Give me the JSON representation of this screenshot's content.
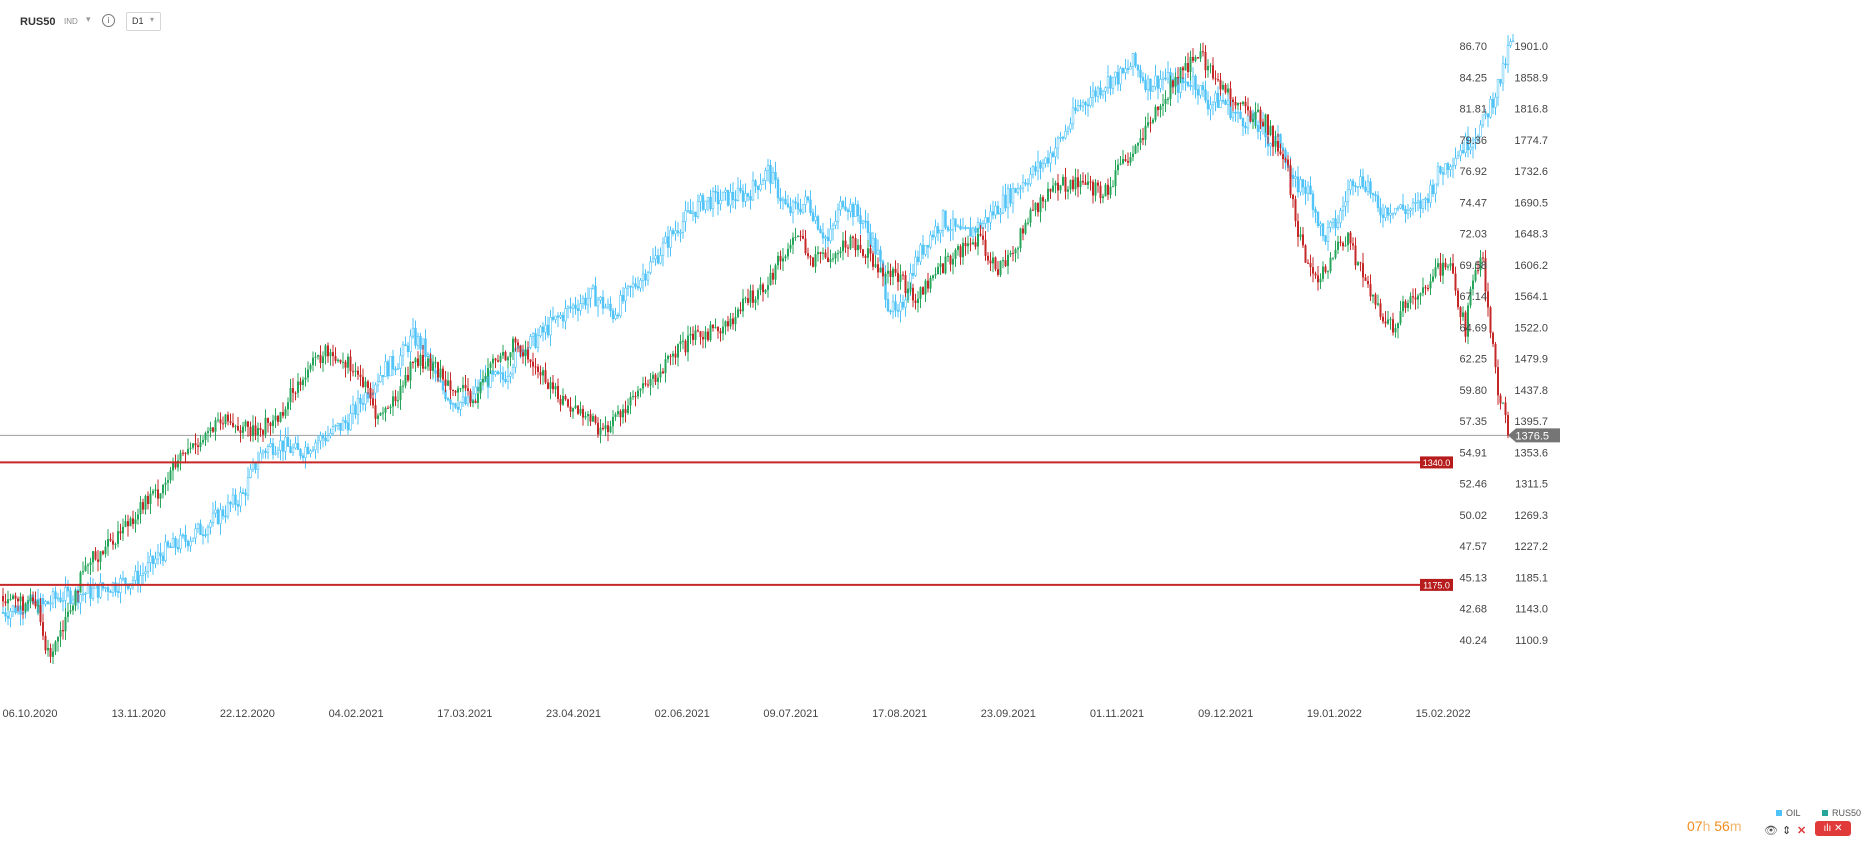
{
  "toolbar": {
    "symbol": "RUS50",
    "type": "IND",
    "timeframe": "D1",
    "caret_icon": "caret-down-icon",
    "info_icon": "info-icon"
  },
  "countdown": {
    "hours": "07",
    "h_label": "h",
    "minutes": "56",
    "m_label": "m"
  },
  "legend": [
    {
      "label": "OIL",
      "color": "#4fc3f7"
    },
    {
      "label": "RUS50",
      "color": "#26a69a"
    }
  ],
  "colors": {
    "oil": "#4fc3f7",
    "up": "#26a65b",
    "down": "#c62828",
    "hline": "#c62828",
    "price_line": "#9e9e9e",
    "price_tag": "#757575"
  },
  "chart_data": {
    "type": "candlestick",
    "x_ticks": [
      "06.10.2020",
      "13.11.2020",
      "22.12.2020",
      "04.02.2021",
      "17.03.2021",
      "23.04.2021",
      "02.06.2021",
      "09.07.2021",
      "17.08.2021",
      "23.09.2021",
      "01.11.2021",
      "09.12.2021",
      "19.01.2022",
      "15.02.2022"
    ],
    "y_left_ticks": [
      "86.70",
      "84.25",
      "81.81",
      "79.36",
      "76.92",
      "74.47",
      "72.03",
      "69.58",
      "67.14",
      "64.69",
      "62.25",
      "59.80",
      "57.35",
      "54.91",
      "52.46",
      "50.02",
      "47.57",
      "45.13",
      "42.68",
      "40.24"
    ],
    "y_right_ticks": [
      "1901.0",
      "1858.9",
      "1816.8",
      "1774.7",
      "1732.6",
      "1690.5",
      "1648.3",
      "1606.2",
      "1564.1",
      "1522.0",
      "1479.9",
      "1437.8",
      "1395.7",
      "1353.6",
      "1311.5",
      "1269.3",
      "1227.2",
      "1185.1",
      "1143.0",
      "1100.9"
    ],
    "y_right_range": [
      1100.9,
      1901.0
    ],
    "y_left_range": [
      40.24,
      86.7
    ],
    "current_price": "1376.5",
    "horizontal_levels": [
      "1340.0",
      "1175.0"
    ],
    "series": [
      {
        "name": "RUS50",
        "kind": "candles",
        "axis": "right",
        "anchors": [
          [
            0,
            1160
          ],
          [
            8,
            1150
          ],
          [
            14,
            1145
          ],
          [
            16,
            1105
          ],
          [
            18,
            1080
          ],
          [
            25,
            1130
          ],
          [
            30,
            1175
          ],
          [
            36,
            1210
          ],
          [
            45,
            1240
          ],
          [
            55,
            1280
          ],
          [
            62,
            1300
          ],
          [
            70,
            1340
          ],
          [
            78,
            1370
          ],
          [
            86,
            1390
          ],
          [
            90,
            1395
          ],
          [
            100,
            1380
          ],
          [
            110,
            1400
          ],
          [
            120,
            1460
          ],
          [
            130,
            1490
          ],
          [
            140,
            1470
          ],
          [
            145,
            1440
          ],
          [
            150,
            1400
          ],
          [
            156,
            1420
          ],
          [
            165,
            1480
          ],
          [
            175,
            1460
          ],
          [
            182,
            1440
          ],
          [
            188,
            1420
          ],
          [
            195,
            1470
          ],
          [
            205,
            1500
          ],
          [
            215,
            1460
          ],
          [
            225,
            1420
          ],
          [
            235,
            1400
          ],
          [
            240,
            1380
          ],
          [
            250,
            1420
          ],
          [
            260,
            1450
          ],
          [
            270,
            1490
          ],
          [
            278,
            1510
          ],
          [
            285,
            1520
          ],
          [
            292,
            1530
          ],
          [
            298,
            1560
          ],
          [
            305,
            1580
          ],
          [
            312,
            1620
          ],
          [
            318,
            1650
          ],
          [
            324,
            1610
          ],
          [
            330,
            1620
          ],
          [
            340,
            1640
          ],
          [
            346,
            1620
          ],
          [
            352,
            1600
          ],
          [
            358,
            1590
          ],
          [
            365,
            1560
          ],
          [
            372,
            1590
          ],
          [
            380,
            1620
          ],
          [
            390,
            1640
          ],
          [
            398,
            1600
          ],
          [
            405,
            1630
          ],
          [
            412,
            1680
          ],
          [
            420,
            1710
          ],
          [
            430,
            1720
          ],
          [
            440,
            1700
          ],
          [
            446,
            1730
          ],
          [
            455,
            1770
          ],
          [
            464,
            1830
          ],
          [
            470,
            1860
          ],
          [
            476,
            1880
          ],
          [
            478,
            1895
          ],
          [
            484,
            1860
          ],
          [
            490,
            1840
          ],
          [
            498,
            1810
          ],
          [
            505,
            1800
          ],
          [
            510,
            1760
          ],
          [
            514,
            1730
          ],
          [
            518,
            1650
          ],
          [
            522,
            1600
          ],
          [
            526,
            1580
          ],
          [
            532,
            1620
          ],
          [
            538,
            1640
          ],
          [
            544,
            1590
          ],
          [
            548,
            1560
          ],
          [
            552,
            1530
          ],
          [
            556,
            1520
          ],
          [
            560,
            1550
          ],
          [
            566,
            1560
          ],
          [
            570,
            1580
          ],
          [
            574,
            1600
          ],
          [
            578,
            1610
          ],
          [
            582,
            1560
          ],
          [
            585,
            1520
          ],
          [
            588,
            1590
          ],
          [
            592,
            1610
          ],
          [
            595,
            1520
          ],
          [
            598,
            1430
          ],
          [
            600,
            1420
          ],
          [
            602,
            1376.5
          ]
        ]
      },
      {
        "name": "OIL",
        "kind": "line-candles",
        "axis": "left",
        "anchors": [
          [
            0,
            42.3
          ],
          [
            10,
            43.0
          ],
          [
            16,
            42.8
          ],
          [
            22,
            43.5
          ],
          [
            35,
            43.9
          ],
          [
            45,
            44.5
          ],
          [
            54,
            45.0
          ],
          [
            64,
            47.0
          ],
          [
            74,
            48.1
          ],
          [
            82,
            49.2
          ],
          [
            90,
            50.5
          ],
          [
            96,
            51.5
          ],
          [
            100,
            53.5
          ],
          [
            104,
            55.0
          ],
          [
            110,
            55.6
          ],
          [
            118,
            54.8
          ],
          [
            124,
            55.6
          ],
          [
            130,
            56.2
          ],
          [
            138,
            57.3
          ],
          [
            145,
            59.4
          ],
          [
            152,
            61.3
          ],
          [
            158,
            62.0
          ],
          [
            164,
            63.9
          ],
          [
            168,
            63.1
          ],
          [
            174,
            60.2
          ],
          [
            180,
            58.9
          ],
          [
            186,
            58.6
          ],
          [
            192,
            60.5
          ],
          [
            200,
            60.6
          ],
          [
            206,
            62.8
          ],
          [
            212,
            63.5
          ],
          [
            220,
            65.0
          ],
          [
            228,
            66.3
          ],
          [
            236,
            67.2
          ],
          [
            244,
            65.7
          ],
          [
            252,
            67.8
          ],
          [
            260,
            69.8
          ],
          [
            270,
            72.6
          ],
          [
            280,
            74.5
          ],
          [
            290,
            74.8
          ],
          [
            298,
            75.1
          ],
          [
            306,
            76.9
          ],
          [
            314,
            73.7
          ],
          [
            322,
            74.5
          ],
          [
            330,
            71.3
          ],
          [
            336,
            74.7
          ],
          [
            344,
            73.0
          ],
          [
            350,
            70.3
          ],
          [
            354,
            66.6
          ],
          [
            358,
            65.3
          ],
          [
            364,
            69.4
          ],
          [
            370,
            71.6
          ],
          [
            376,
            73.1
          ],
          [
            384,
            71.8
          ],
          [
            392,
            72.8
          ],
          [
            400,
            74.5
          ],
          [
            408,
            76.1
          ],
          [
            416,
            77.5
          ],
          [
            424,
            79.6
          ],
          [
            430,
            81.9
          ],
          [
            436,
            82.9
          ],
          [
            442,
            84.0
          ],
          [
            448,
            84.4
          ],
          [
            452,
            85.4
          ],
          [
            458,
            83.7
          ],
          [
            464,
            84.2
          ],
          [
            470,
            83.6
          ],
          [
            476,
            84.1
          ],
          [
            482,
            82.3
          ],
          [
            488,
            82.4
          ],
          [
            494,
            81.1
          ],
          [
            500,
            80.8
          ],
          [
            506,
            79.4
          ],
          [
            512,
            79.0
          ],
          [
            516,
            75.7
          ],
          [
            520,
            75.9
          ],
          [
            524,
            74.6
          ],
          [
            528,
            71.6
          ],
          [
            534,
            73.0
          ],
          [
            540,
            76.4
          ],
          [
            546,
            75.9
          ],
          [
            550,
            73.7
          ],
          [
            556,
            74.1
          ],
          [
            562,
            73.8
          ],
          [
            568,
            74.3
          ],
          [
            574,
            76.6
          ],
          [
            580,
            78.0
          ],
          [
            586,
            79.2
          ],
          [
            592,
            80.6
          ],
          [
            596,
            82.6
          ],
          [
            600,
            84.6
          ],
          [
            602,
            86.3
          ],
          [
            604,
            87.1
          ]
        ]
      }
    ]
  }
}
